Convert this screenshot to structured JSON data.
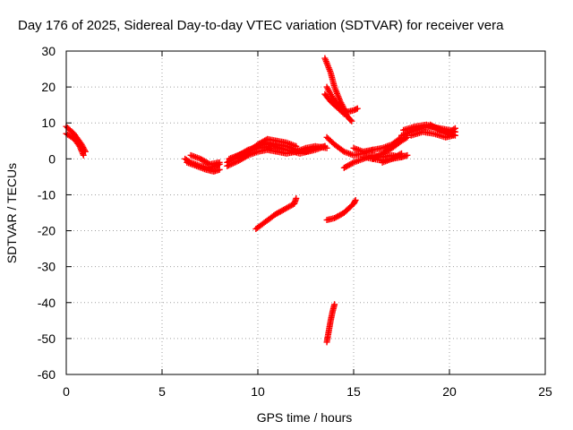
{
  "chart_data": {
    "type": "scatter",
    "title": "Day 176 of 2025, Sidereal Day-to-day VTEC variation (SDTVAR) for receiver vera",
    "xlabel": "GPS time / hours",
    "ylabel": "SDTVAR / TECUs",
    "xlim": [
      0,
      25
    ],
    "ylim": [
      -60,
      30
    ],
    "x_ticks": [
      "0",
      "5",
      "10",
      "15",
      "20",
      "25"
    ],
    "y_ticks": [
      "30",
      "20",
      "10",
      "0",
      "-10",
      "-20",
      "-30",
      "-40",
      "-50",
      "-60"
    ],
    "grid": true,
    "legend": "none",
    "marker": "plus",
    "marker_color": "#ff0000",
    "series": [
      {
        "segments": [
          [
            [
              0.0,
              9.0
            ],
            [
              0.2,
              8.0
            ],
            [
              0.4,
              7.0
            ],
            [
              0.6,
              5.5
            ],
            [
              0.8,
              4.0
            ],
            [
              1.0,
              2.0
            ]
          ],
          [
            [
              0.0,
              7.0
            ],
            [
              0.3,
              6.0
            ],
            [
              0.5,
              5.0
            ],
            [
              0.7,
              3.5
            ],
            [
              0.9,
              1.0
            ]
          ],
          [
            [
              6.2,
              0.0
            ],
            [
              6.5,
              -1.0
            ],
            [
              7.0,
              -2.0
            ],
            [
              7.5,
              -2.5
            ],
            [
              7.8,
              -2.0
            ],
            [
              8.0,
              -1.5
            ]
          ],
          [
            [
              6.3,
              -1.0
            ],
            [
              6.8,
              -2.0
            ],
            [
              7.3,
              -3.0
            ],
            [
              7.7,
              -3.5
            ],
            [
              8.0,
              -3.0
            ]
          ],
          [
            [
              6.5,
              1.0
            ],
            [
              7.0,
              0.0
            ],
            [
              7.5,
              -1.5
            ],
            [
              8.0,
              -1.0
            ]
          ],
          [
            [
              8.4,
              -1.0
            ],
            [
              9.0,
              1.0
            ],
            [
              9.5,
              2.5
            ],
            [
              10.0,
              3.5
            ],
            [
              10.5,
              4.5
            ],
            [
              11.0,
              4.0
            ],
            [
              11.5,
              3.5
            ],
            [
              12.0,
              2.5
            ],
            [
              12.5,
              2.0
            ],
            [
              13.0,
              3.0
            ],
            [
              13.5,
              3.5
            ]
          ],
          [
            [
              8.4,
              -2.0
            ],
            [
              9.0,
              -0.5
            ],
            [
              9.5,
              1.0
            ],
            [
              10.0,
              2.0
            ],
            [
              10.5,
              2.5
            ],
            [
              11.0,
              2.0
            ],
            [
              11.5,
              1.5
            ],
            [
              12.0,
              2.0
            ],
            [
              12.5,
              3.0
            ],
            [
              13.0,
              3.5
            ],
            [
              13.6,
              3.0
            ]
          ],
          [
            [
              9.0,
              0.0
            ],
            [
              9.5,
              2.0
            ],
            [
              10.0,
              4.0
            ],
            [
              10.5,
              5.5
            ],
            [
              11.0,
              5.0
            ],
            [
              11.5,
              4.5
            ],
            [
              12.0,
              3.5
            ]
          ],
          [
            [
              8.5,
              0.0
            ],
            [
              9.2,
              1.5
            ],
            [
              10.0,
              3.0
            ],
            [
              10.8,
              3.5
            ],
            [
              11.5,
              2.5
            ],
            [
              12.2,
              1.5
            ],
            [
              13.0,
              2.5
            ],
            [
              13.5,
              3.5
            ]
          ],
          [
            [
              9.9,
              -19.5
            ],
            [
              10.4,
              -17.5
            ],
            [
              10.9,
              -15.5
            ],
            [
              11.4,
              -14.0
            ],
            [
              11.9,
              -12.5
            ],
            [
              12.0,
              -11.0
            ]
          ],
          [
            [
              13.5,
              28.0
            ],
            [
              13.8,
              24.0
            ],
            [
              14.0,
              20.0
            ],
            [
              14.3,
              16.0
            ],
            [
              14.6,
              13.0
            ],
            [
              15.0,
              13.5
            ],
            [
              15.2,
              14.0
            ]
          ],
          [
            [
              13.6,
              20.0
            ],
            [
              13.9,
              17.0
            ],
            [
              14.2,
              15.0
            ],
            [
              14.5,
              13.0
            ],
            [
              14.8,
              11.0
            ],
            [
              14.9,
              10.5
            ]
          ],
          [
            [
              13.5,
              18.0
            ],
            [
              13.8,
              16.0
            ],
            [
              14.1,
              14.5
            ],
            [
              14.5,
              12.5
            ]
          ],
          [
            [
              13.6,
              6.0
            ],
            [
              14.0,
              4.0
            ],
            [
              14.5,
              2.0
            ],
            [
              15.0,
              1.0
            ],
            [
              15.5,
              1.5
            ],
            [
              16.0,
              2.5
            ]
          ],
          [
            [
              14.5,
              -2.5
            ],
            [
              15.0,
              -1.0
            ],
            [
              15.5,
              0.0
            ],
            [
              16.0,
              1.0
            ],
            [
              16.5,
              0.5
            ],
            [
              17.0,
              1.0
            ],
            [
              17.5,
              0.5
            ]
          ],
          [
            [
              15.0,
              3.0
            ],
            [
              15.5,
              2.0
            ],
            [
              16.0,
              2.5
            ],
            [
              16.5,
              3.0
            ],
            [
              17.0,
              4.0
            ],
            [
              17.5,
              6.0
            ]
          ],
          [
            [
              16.0,
              0.0
            ],
            [
              16.5,
              1.5
            ],
            [
              17.0,
              3.0
            ],
            [
              17.5,
              5.0
            ],
            [
              17.8,
              6.0
            ]
          ],
          [
            [
              15.5,
              0.5
            ],
            [
              16.5,
              -0.5
            ],
            [
              17.0,
              0.0
            ],
            [
              17.5,
              0.5
            ],
            [
              17.8,
              1.0
            ]
          ],
          [
            [
              16.5,
              -1.0
            ],
            [
              17.0,
              0.0
            ],
            [
              17.5,
              1.5
            ]
          ],
          [
            [
              13.6,
              -17.0
            ],
            [
              14.0,
              -16.5
            ],
            [
              14.5,
              -15.0
            ],
            [
              15.0,
              -12.5
            ],
            [
              15.1,
              -11.5
            ]
          ],
          [
            [
              13.6,
              -51.0
            ],
            [
              13.7,
              -48.0
            ],
            [
              13.8,
              -45.0
            ],
            [
              13.9,
              -42.5
            ],
            [
              14.0,
              -40.5
            ]
          ],
          [
            [
              17.5,
              6.5
            ],
            [
              18.0,
              7.5
            ],
            [
              18.5,
              8.5
            ],
            [
              19.0,
              9.0
            ],
            [
              19.5,
              8.5
            ],
            [
              20.0,
              8.0
            ],
            [
              20.3,
              7.5
            ]
          ],
          [
            [
              17.6,
              8.0
            ],
            [
              18.2,
              9.0
            ],
            [
              18.8,
              9.5
            ],
            [
              19.4,
              8.5
            ],
            [
              20.0,
              7.0
            ],
            [
              20.3,
              6.5
            ]
          ],
          [
            [
              18.0,
              6.5
            ],
            [
              18.6,
              7.5
            ],
            [
              19.2,
              7.0
            ],
            [
              19.8,
              6.0
            ],
            [
              20.2,
              6.5
            ]
          ],
          [
            [
              19.0,
              9.5
            ],
            [
              19.5,
              8.0
            ],
            [
              20.0,
              7.5
            ],
            [
              20.3,
              8.5
            ]
          ]
        ]
      }
    ]
  }
}
